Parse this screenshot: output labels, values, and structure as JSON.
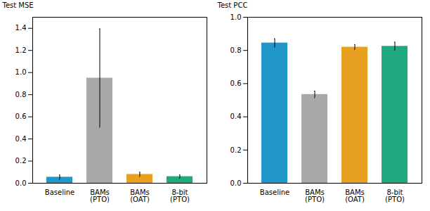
{
  "chart_data": [
    {
      "type": "bar",
      "categories": [
        "Baseline",
        "BAMs\n(PTO)",
        "BAMs\n(OAT)",
        "8-bit\n(PTO)"
      ],
      "values": [
        0.055,
        0.95,
        0.08,
        0.06
      ],
      "errors": [
        0.02,
        0.445,
        0.02,
        0.015
      ],
      "colors": [
        "#2196C8",
        "#A8A8A8",
        "#E8A020",
        "#20A880"
      ],
      "ylabel": "Test MSE",
      "ylim": [
        0,
        1.5
      ],
      "yticks": [
        {
          "value": 0,
          "label": "0.0"
        },
        0.2,
        0.4,
        0.6,
        0.8,
        {
          "value": 1,
          "label": "1.0"
        },
        1.2,
        1.4
      ]
    },
    {
      "type": "bar",
      "categories": [
        "Baseline",
        "BAMs\n(PTO)",
        "BAMs\n(OAT)",
        "8-bit\n(PTO)"
      ],
      "values": [
        0.845,
        0.535,
        0.82,
        0.825
      ],
      "errors": [
        0.025,
        0.02,
        0.015,
        0.025
      ],
      "colors": [
        "#2196C8",
        "#A8A8A8",
        "#E8A020",
        "#20A880"
      ],
      "ylabel": "Test PCC",
      "ylim": [
        0,
        1.0
      ],
      "yticks": [
        {
          "value": 0,
          "label": "0.0"
        },
        0.2,
        0.4,
        0.6,
        0.8,
        {
          "value": 1,
          "label": "1.0"
        }
      ]
    }
  ]
}
